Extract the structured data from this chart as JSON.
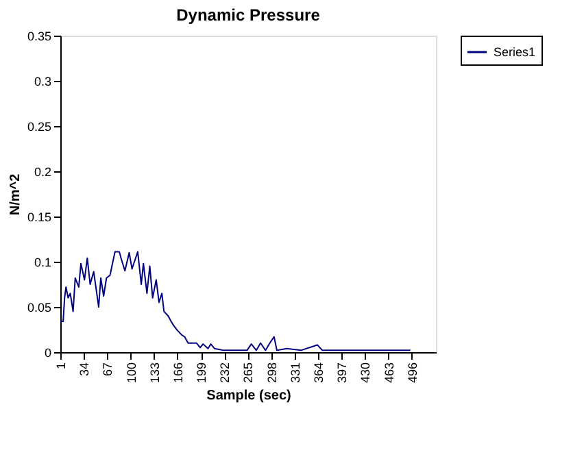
{
  "chart_data": {
    "type": "line",
    "title": "Dynamic Pressure",
    "xlabel": "Sample (sec)",
    "ylabel": "N/m^2",
    "xlim": [
      1,
      530
    ],
    "xticks": [
      1,
      34,
      67,
      100,
      133,
      166,
      199,
      232,
      265,
      298,
      331,
      364,
      397,
      430,
      463,
      496
    ],
    "ylim": [
      0,
      0.35
    ],
    "yticks": [
      0,
      0.05,
      0.1,
      0.15,
      0.2,
      0.25,
      0.3,
      0.35
    ],
    "grid": false,
    "legend": "right",
    "marker": "none",
    "line_style": "solid",
    "series": [
      {
        "name": "Series1",
        "color": "#000080",
        "x": [
          1,
          5,
          7,
          9,
          12,
          15,
          19,
          22,
          27,
          30,
          35,
          39,
          43,
          48,
          52,
          55,
          58,
          62,
          66,
          71,
          75,
          78,
          84,
          88,
          92,
          98,
          102,
          110,
          115,
          118,
          123,
          127,
          131,
          136,
          140,
          144,
          147,
          153,
          157,
          161,
          166,
          172,
          176,
          181,
          186,
          193,
          198,
          202,
          209,
          213,
          218,
          231,
          245,
          264,
          270,
          277,
          283,
          290,
          296,
          302,
          306,
          320,
          340,
          363,
          370,
          400,
          430,
          460,
          494
        ],
        "values": [
          0.034,
          0.034,
          0.06,
          0.072,
          0.06,
          0.065,
          0.045,
          0.082,
          0.072,
          0.098,
          0.08,
          0.104,
          0.075,
          0.089,
          0.067,
          0.05,
          0.082,
          0.062,
          0.082,
          0.085,
          0.1,
          0.111,
          0.111,
          0.1,
          0.09,
          0.11,
          0.092,
          0.111,
          0.075,
          0.098,
          0.065,
          0.095,
          0.06,
          0.08,
          0.055,
          0.065,
          0.045,
          0.04,
          0.034,
          0.029,
          0.024,
          0.019,
          0.017,
          0.01,
          0.01,
          0.01,
          0.005,
          0.009,
          0.004,
          0.009,
          0.004,
          0.002,
          0.002,
          0.002,
          0.009,
          0.002,
          0.01,
          0.002,
          0.01,
          0.017,
          0.002,
          0.004,
          0.002,
          0.008,
          0.002,
          0.002,
          0.002,
          0.002,
          0.002
        ]
      }
    ]
  }
}
